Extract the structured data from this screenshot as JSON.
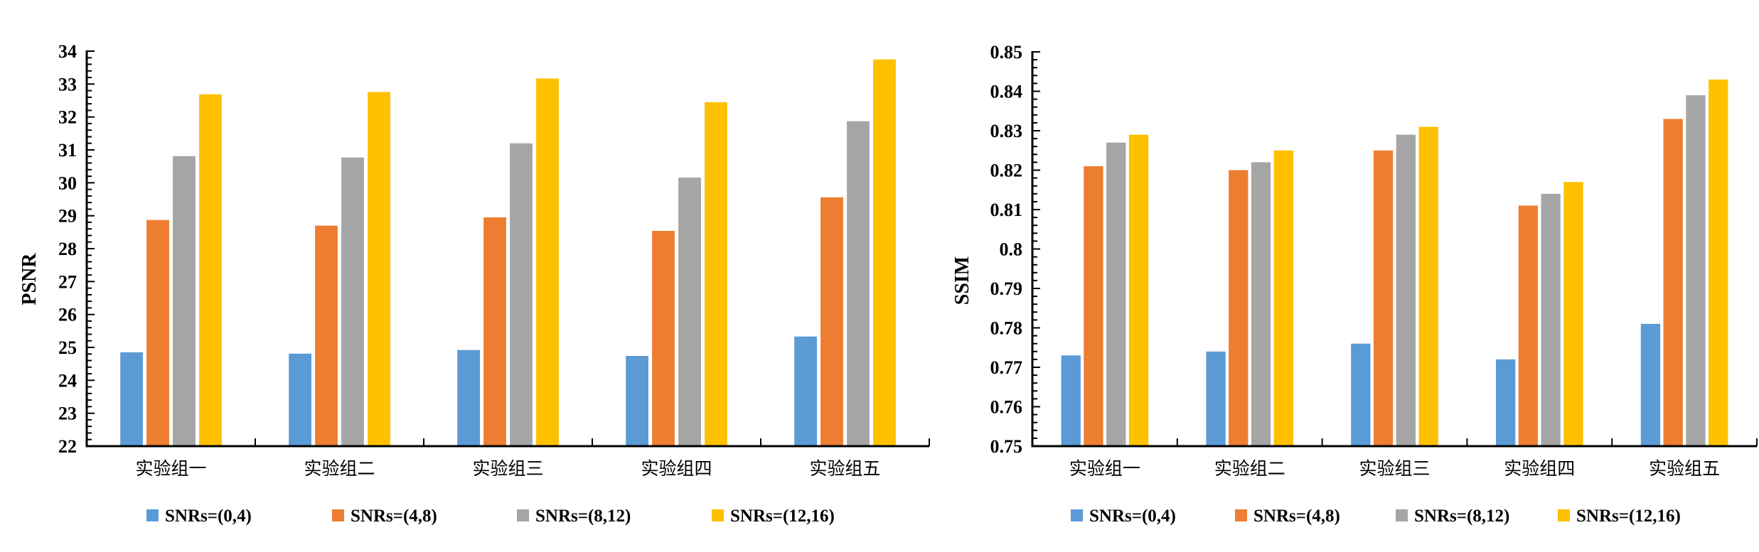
{
  "colors": {
    "series": [
      "#5B9BD5",
      "#ED7D31",
      "#A5A5A5",
      "#FFC000"
    ],
    "axis": "#000000"
  },
  "chart_data": [
    {
      "type": "bar",
      "title": "",
      "xlabel": "",
      "ylabel": "PSNR",
      "ylim": [
        22,
        34
      ],
      "major_step": 1,
      "minor_step": 0.2,
      "yticks": [
        "22",
        "23",
        "24",
        "25",
        "26",
        "27",
        "28",
        "29",
        "30",
        "31",
        "32",
        "33",
        "34"
      ],
      "categories": [
        "实验组一",
        "实验组二",
        "实验组三",
        "实验组四",
        "实验组五"
      ],
      "legend_position": "bottom",
      "grid": false,
      "series": [
        {
          "name": "SNRs=(0,4)",
          "values": [
            24.85,
            24.81,
            24.92,
            24.74,
            25.33
          ]
        },
        {
          "name": "SNRs=(4,8)",
          "values": [
            28.87,
            28.7,
            28.95,
            28.54,
            29.56
          ]
        },
        {
          "name": "SNRs=(8,12)",
          "values": [
            30.81,
            30.77,
            31.2,
            30.16,
            31.87
          ]
        },
        {
          "name": "SNRs=(12,16)",
          "values": [
            32.69,
            32.76,
            33.17,
            32.45,
            33.75
          ]
        }
      ]
    },
    {
      "type": "bar",
      "title": "",
      "xlabel": "",
      "ylabel": "SSIM",
      "ylim": [
        0.75,
        0.85
      ],
      "major_step": 0.01,
      "minor_step": 0.002,
      "yticks": [
        "0.75",
        "0.76",
        "0.77",
        "0.78",
        "0.79",
        "0.8",
        "0.81",
        "0.82",
        "0.83",
        "0.84",
        "0.85"
      ],
      "categories": [
        "实验组一",
        "实验组二",
        "实验组三",
        "实验组四",
        "实验组五"
      ],
      "legend_position": "bottom",
      "grid": false,
      "series": [
        {
          "name": "SNRs=(0,4)",
          "values": [
            0.773,
            0.774,
            0.776,
            0.772,
            0.781
          ]
        },
        {
          "name": "SNRs=(4,8)",
          "values": [
            0.821,
            0.82,
            0.825,
            0.811,
            0.833
          ]
        },
        {
          "name": "SNRs=(8,12)",
          "values": [
            0.827,
            0.822,
            0.829,
            0.814,
            0.839
          ]
        },
        {
          "name": "SNRs=(12,16)",
          "values": [
            0.829,
            0.825,
            0.831,
            0.817,
            0.843
          ]
        }
      ]
    }
  ]
}
